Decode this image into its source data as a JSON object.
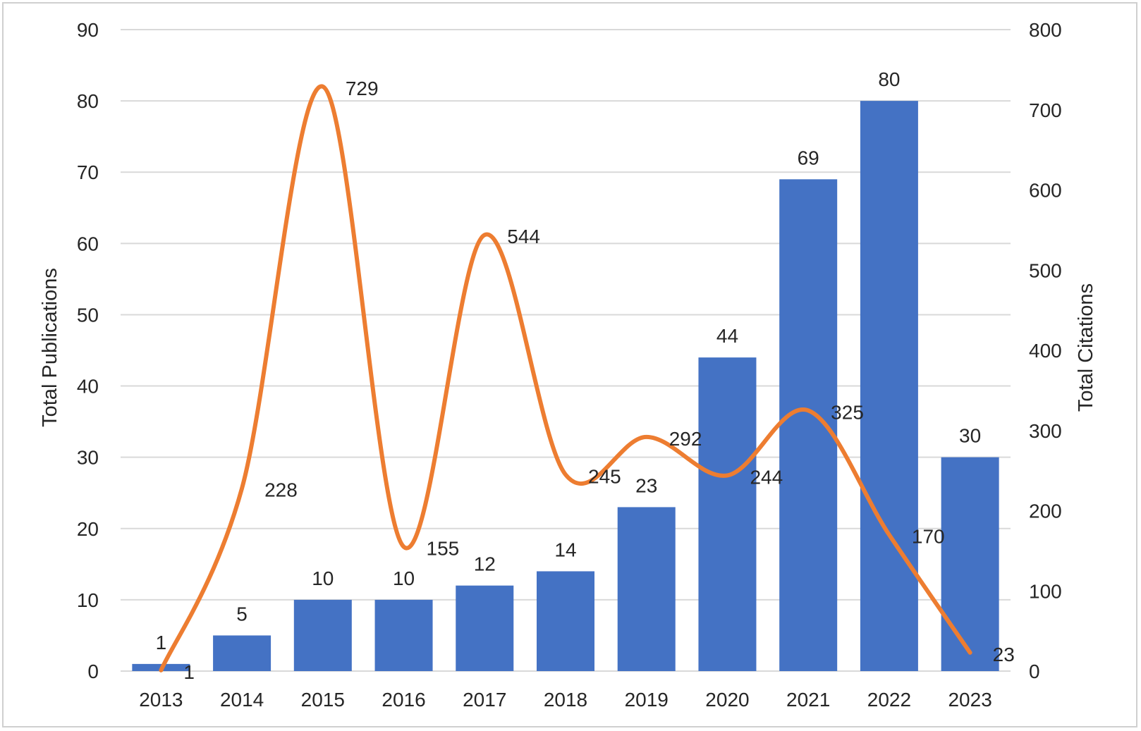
{
  "chart_data": {
    "type": "bar",
    "categories": [
      "2013",
      "2014",
      "2015",
      "2016",
      "2017",
      "2018",
      "2019",
      "2020",
      "2021",
      "2022",
      "2023"
    ],
    "series": [
      {
        "name": "",
        "type": "bar",
        "axis": "left",
        "color": "#4472c4",
        "values": [
          1,
          5,
          10,
          10,
          12,
          14,
          23,
          44,
          69,
          80,
          30
        ],
        "labels": [
          "1",
          "5",
          "10",
          "10",
          "12",
          "14",
          "23",
          "44",
          "69",
          "80",
          "30"
        ]
      },
      {
        "name": "",
        "type": "line",
        "smooth": true,
        "axis": "right",
        "color": "#ed7d31",
        "values": [
          1,
          228,
          729,
          155,
          544,
          245,
          292,
          244,
          325,
          170,
          23
        ],
        "labels": [
          "1",
          "228",
          "729",
          "155",
          "544",
          "245",
          "292",
          "244",
          "325",
          "170",
          "23"
        ]
      }
    ],
    "ylabel": "Total Publications",
    "y2label": "Total Citations",
    "ylim": [
      0,
      90
    ],
    "y2lim": [
      0,
      800
    ],
    "yticks": [
      "0",
      "10",
      "20",
      "30",
      "40",
      "50",
      "60",
      "70",
      "80",
      "90"
    ],
    "y2ticks": [
      "0",
      "100",
      "200",
      "300",
      "400",
      "500",
      "600",
      "700",
      "800"
    ],
    "grid": true,
    "gridColor": "#d9d9d9",
    "legend": "none"
  }
}
